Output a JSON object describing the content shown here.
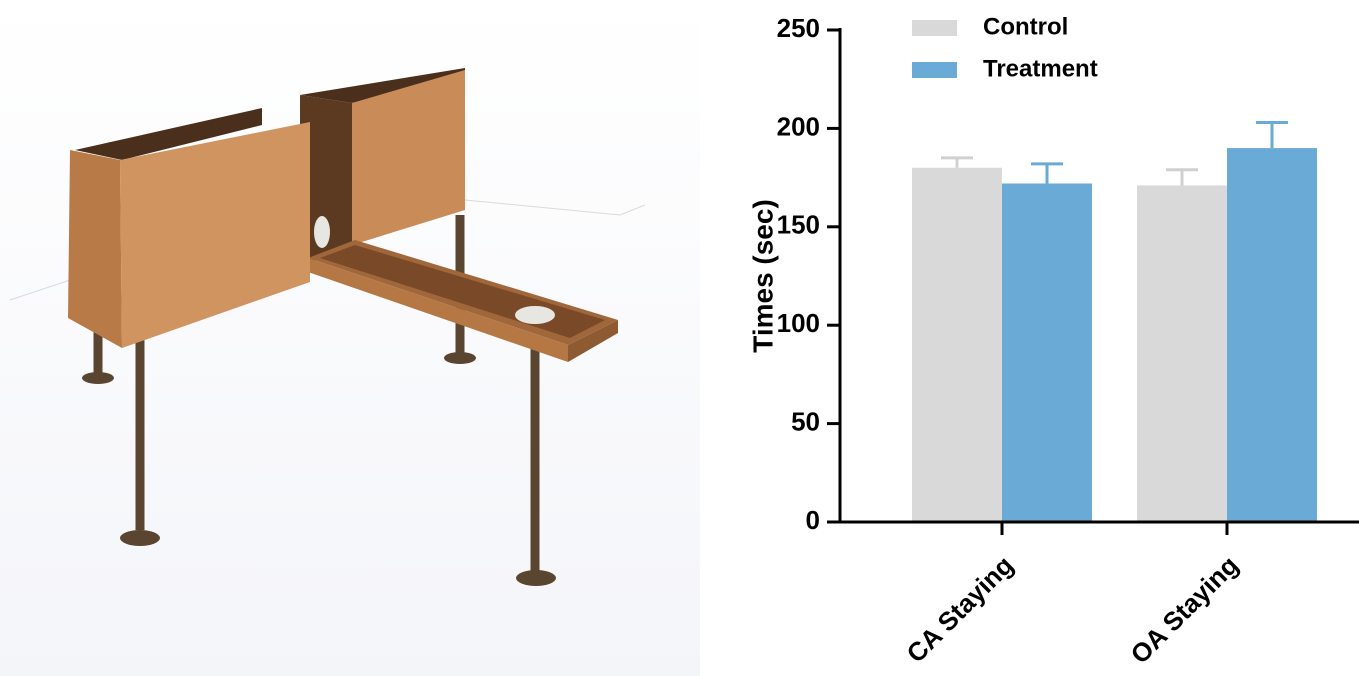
{
  "chart_data": {
    "type": "bar",
    "y_label": "Times (sec)",
    "categories": [
      "CA Staying",
      "OA Staying"
    ],
    "series": [
      {
        "name": "Control",
        "color": "#d9d9d9",
        "values": [
          180,
          171
        ],
        "errors": [
          5,
          8
        ]
      },
      {
        "name": "Treatment",
        "color": "#6aaad6",
        "values": [
          172,
          190
        ],
        "errors": [
          10,
          13
        ]
      }
    ],
    "ylim": [
      0,
      250
    ],
    "yticks": [
      0,
      50,
      100,
      150,
      200,
      250
    ]
  }
}
